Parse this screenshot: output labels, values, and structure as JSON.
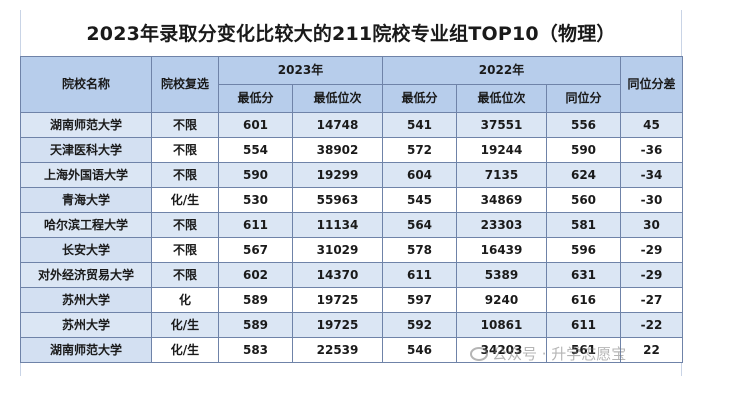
{
  "title": "2023年录取分变化比较大的211院校专业组TOP10（物理）",
  "header": {
    "school_name": "院校名称",
    "requirement": "院校复选",
    "year_2023": "2023年",
    "year_2022": "2022年",
    "min_score": "最低分",
    "min_rank": "最低位次",
    "equiv_score": "同位分",
    "diff": "同位分差"
  },
  "rows": [
    {
      "name": "湖南师范大学",
      "req": "不限",
      "s23": "601",
      "r23": "14748",
      "s22": "541",
      "r22": "37551",
      "eq": "556",
      "diff": "45"
    },
    {
      "name": "天津医科大学",
      "req": "不限",
      "s23": "554",
      "r23": "38902",
      "s22": "572",
      "r22": "19244",
      "eq": "590",
      "diff": "-36"
    },
    {
      "name": "上海外国语大学",
      "req": "不限",
      "s23": "590",
      "r23": "19299",
      "s22": "604",
      "r22": "7135",
      "eq": "624",
      "diff": "-34"
    },
    {
      "name": "青海大学",
      "req": "化/生",
      "s23": "530",
      "r23": "55963",
      "s22": "545",
      "r22": "34869",
      "eq": "560",
      "diff": "-30"
    },
    {
      "name": "哈尔滨工程大学",
      "req": "不限",
      "s23": "611",
      "r23": "11134",
      "s22": "564",
      "r22": "23303",
      "eq": "581",
      "diff": "30"
    },
    {
      "name": "长安大学",
      "req": "不限",
      "s23": "567",
      "r23": "31029",
      "s22": "578",
      "r22": "16439",
      "eq": "596",
      "diff": "-29"
    },
    {
      "name": "对外经济贸易大学",
      "req": "不限",
      "s23": "602",
      "r23": "14370",
      "s22": "611",
      "r22": "5389",
      "eq": "631",
      "diff": "-29"
    },
    {
      "name": "苏州大学",
      "req": "化",
      "s23": "589",
      "r23": "19725",
      "s22": "597",
      "r22": "9240",
      "eq": "616",
      "diff": "-27"
    },
    {
      "name": "苏州大学",
      "req": "化/生",
      "s23": "589",
      "r23": "19725",
      "s22": "592",
      "r22": "10861",
      "eq": "611",
      "diff": "-22"
    },
    {
      "name": "湖南师范大学",
      "req": "化/生",
      "s23": "583",
      "r23": "22539",
      "s22": "546",
      "r22": "34203",
      "eq": "561",
      "diff": "22"
    }
  ],
  "watermark": "公众号 · 升学志愿宝"
}
